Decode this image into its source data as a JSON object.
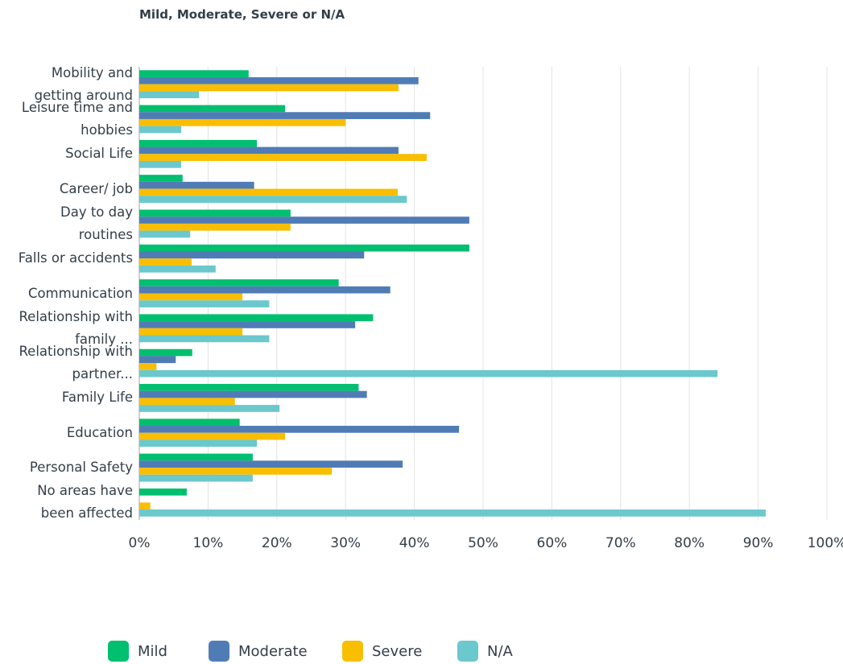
{
  "chart_data": {
    "type": "barh",
    "title": "Mild, Moderate, Severe or N/A",
    "categories": [
      "Mobility and getting around",
      "Leisure time and hobbies",
      "Social Life",
      "Career/ job",
      "Day to day routines",
      "Falls or accidents",
      "Communication",
      "Relationship with family ...",
      "Relationship with partner...",
      "Family Life",
      "Education",
      "Personal Safety",
      "No areas have been affected"
    ],
    "series": [
      {
        "name": "Mild",
        "color": "#00bf6f",
        "values": [
          15.9,
          21.2,
          17.1,
          6.3,
          22.0,
          48.0,
          29.0,
          34.0,
          7.7,
          31.9,
          14.6,
          16.5,
          6.9
        ]
      },
      {
        "name": "Moderate",
        "color": "#507cb6",
        "values": [
          40.6,
          42.3,
          37.7,
          16.7,
          48.0,
          32.7,
          36.5,
          31.4,
          5.3,
          33.1,
          46.5,
          38.3,
          0
        ]
      },
      {
        "name": "Severe",
        "color": "#f9be00",
        "values": [
          37.7,
          30.0,
          41.8,
          37.6,
          22.0,
          7.6,
          15.0,
          15.0,
          2.5,
          13.9,
          21.2,
          28.0,
          1.6
        ]
      },
      {
        "name": "N/A",
        "color": "#6bc8cd",
        "values": [
          8.7,
          6.1,
          6.1,
          38.9,
          7.4,
          11.1,
          18.9,
          18.9,
          84.1,
          20.4,
          17.1,
          16.5,
          91.1
        ]
      }
    ],
    "xlim": [
      0,
      100
    ],
    "xticks": [
      {
        "value": 0,
        "label": "0%"
      },
      {
        "value": 10,
        "label": "10%"
      },
      {
        "value": 20,
        "label": "20%"
      },
      {
        "value": 30,
        "label": "30%"
      },
      {
        "value": 40,
        "label": "40%"
      },
      {
        "value": 50,
        "label": "50%"
      },
      {
        "value": 60,
        "label": "60%"
      },
      {
        "value": 70,
        "label": "70%"
      },
      {
        "value": 80,
        "label": "80%"
      },
      {
        "value": 90,
        "label": "90%"
      },
      {
        "value": 100,
        "label": "100%"
      }
    ],
    "grid": true,
    "legend": "bottom"
  }
}
